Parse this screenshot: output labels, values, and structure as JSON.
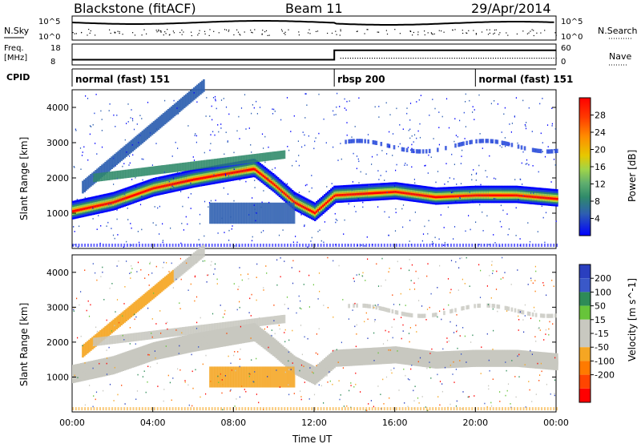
{
  "header": {
    "title": "Blackstone (fitACF)",
    "beam": "Beam 11",
    "date": "29/Apr/2014"
  },
  "summary": {
    "nsky_label": "N.Sky",
    "nsky_ticks": [
      "10^5",
      "10^0"
    ],
    "nsearch_label": "N.Search",
    "freq_label_1": "Freq.",
    "freq_label_2": "[MHz]",
    "freq_ticks": [
      "18",
      "8"
    ],
    "nave_label": "Nave",
    "nave_ticks": [
      "60",
      "0"
    ],
    "cpid_label": "CPID",
    "cpid_segments": [
      {
        "label": "normal (fast) 151",
        "start_hour": 0,
        "end_hour": 13
      },
      {
        "label": "rbsp 200",
        "start_hour": 13,
        "end_hour": 20
      },
      {
        "label": "normal (fast) 151",
        "start_hour": 20,
        "end_hour": 24
      }
    ]
  },
  "panels": {
    "power": {
      "ylabel": "Slant Range [km]",
      "colorbar_label": "Power [dB]",
      "colorbar_ticks": [
        "28",
        "24",
        "20",
        "16",
        "12",
        "8",
        "4"
      ],
      "colors": [
        "#ff0000",
        "#ff5a00",
        "#ff9d00",
        "#e8cf00",
        "#9fd44a",
        "#5fae6e",
        "#2f8a6a",
        "#2e5fb0",
        "#1a3fd8",
        "#0000ff"
      ]
    },
    "velocity": {
      "ylabel": "Slant Range [km]",
      "colorbar_label": "Velocity [m s^-1]",
      "colorbar_ticks": [
        "200",
        "100",
        "50",
        "15",
        "-15",
        "-50",
        "-100",
        "-200"
      ],
      "colors": [
        "#2a3fbf",
        "#3a58c8",
        "#2e8b57",
        "#67c43a",
        "#c8c8c0",
        "#c8c8c0",
        "#f5a623",
        "#ff7a00",
        "#ff4500",
        "#ff0000"
      ]
    },
    "y_ticks": [
      "1000",
      "2000",
      "3000",
      "4000"
    ],
    "x_ticks": [
      "00:00",
      "04:00",
      "08:00",
      "12:00",
      "16:00",
      "20:00",
      "00:00"
    ],
    "xlabel": "Time UT"
  },
  "chart_data": {
    "type": "heatmap",
    "title": "Blackstone (fitACF)",
    "xlabel": "Time UT",
    "ylabel": "Slant Range [km]",
    "x_range_hours": [
      0,
      24
    ],
    "y_range_km": [
      0,
      4500
    ],
    "series": [
      {
        "name": "Power [dB]",
        "colorbar_range": [
          0,
          32
        ]
      },
      {
        "name": "Velocity [m s^-1]",
        "colorbar_range": [
          -250,
          250
        ]
      }
    ],
    "main_echo_band_center_km": [
      {
        "hour": 0,
        "km": 1050
      },
      {
        "hour": 2,
        "km": 1300
      },
      {
        "hour": 4,
        "km": 1700
      },
      {
        "hour": 6,
        "km": 1950
      },
      {
        "hour": 8,
        "km": 2150
      },
      {
        "hour": 9,
        "km": 2250
      },
      {
        "hour": 10,
        "km": 1800
      },
      {
        "hour": 11,
        "km": 1300
      },
      {
        "hour": 12,
        "km": 1000
      },
      {
        "hour": 13,
        "km": 1500
      },
      {
        "hour": 16,
        "km": 1600
      },
      {
        "hour": 18,
        "km": 1450
      },
      {
        "hour": 20,
        "km": 1500
      },
      {
        "hour": 22,
        "km": 1500
      },
      {
        "hour": 24,
        "km": 1400
      }
    ],
    "frequency_mhz": [
      {
        "hour": 0,
        "value": 10.5
      },
      {
        "hour": 13,
        "value": 10.5
      },
      {
        "hour": 13,
        "value": 15
      },
      {
        "hour": 24,
        "value": 15
      }
    ]
  }
}
